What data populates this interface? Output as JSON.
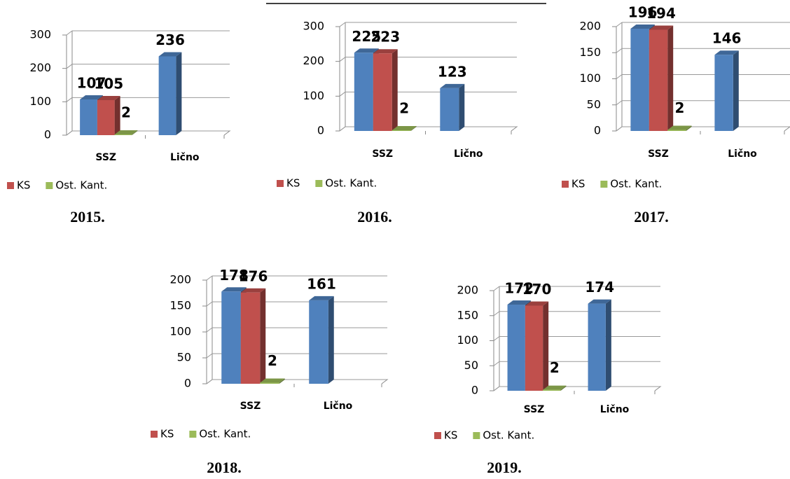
{
  "chart_data": [
    {
      "type": "bar3d",
      "title": "2015.",
      "categories": [
        "SSZ",
        "Lično"
      ],
      "series": [
        {
          "color": "#4f81bd",
          "values": [
            107,
            236
          ]
        },
        {
          "name": "KS",
          "color": "#c0504d",
          "values": [
            105,
            null
          ]
        },
        {
          "name": "Ost. Kant.",
          "color": "#9bbb59",
          "values": [
            2,
            null
          ]
        }
      ],
      "ylim": [
        0,
        300
      ],
      "yticks": [
        0,
        100,
        200,
        300
      ],
      "grid": true
    },
    {
      "type": "bar3d",
      "title": "2016.",
      "categories": [
        "SSZ",
        "Lično"
      ],
      "series": [
        {
          "color": "#4f81bd",
          "values": [
            225,
            123
          ]
        },
        {
          "name": "KS",
          "color": "#c0504d",
          "values": [
            223,
            null
          ]
        },
        {
          "name": "Ost. Kant.",
          "color": "#9bbb59",
          "values": [
            2,
            null
          ]
        }
      ],
      "ylim": [
        0,
        300
      ],
      "yticks": [
        0,
        100,
        200,
        300
      ],
      "grid": true
    },
    {
      "type": "bar3d",
      "title": "2017.",
      "categories": [
        "SSZ",
        "Lično"
      ],
      "series": [
        {
          "color": "#4f81bd",
          "values": [
            196,
            146
          ]
        },
        {
          "name": "KS",
          "color": "#c0504d",
          "values": [
            194,
            null
          ]
        },
        {
          "name": "Ost. Kant.",
          "color": "#9bbb59",
          "values": [
            2,
            null
          ]
        }
      ],
      "ylim": [
        0,
        200
      ],
      "yticks": [
        0,
        50,
        100,
        150,
        200
      ],
      "grid": true
    },
    {
      "type": "bar3d",
      "title": "2018.",
      "categories": [
        "SSZ",
        "Lično"
      ],
      "series": [
        {
          "color": "#4f81bd",
          "values": [
            178,
            161
          ]
        },
        {
          "name": "KS",
          "color": "#c0504d",
          "values": [
            176,
            null
          ]
        },
        {
          "name": "Ost. Kant.",
          "color": "#9bbb59",
          "values": [
            2,
            null
          ]
        }
      ],
      "ylim": [
        0,
        200
      ],
      "yticks": [
        0,
        50,
        100,
        150,
        200
      ],
      "grid": true
    },
    {
      "type": "bar3d",
      "title": "2019.",
      "categories": [
        "SSZ",
        "Lično"
      ],
      "series": [
        {
          "color": "#4f81bd",
          "values": [
            172,
            174
          ]
        },
        {
          "name": "KS",
          "color": "#c0504d",
          "values": [
            170,
            null
          ]
        },
        {
          "name": "Ost. Kant.",
          "color": "#9bbb59",
          "values": [
            2,
            null
          ]
        }
      ],
      "ylim": [
        0,
        200
      ],
      "yticks": [
        0,
        50,
        100,
        150,
        200
      ],
      "grid": true
    }
  ]
}
